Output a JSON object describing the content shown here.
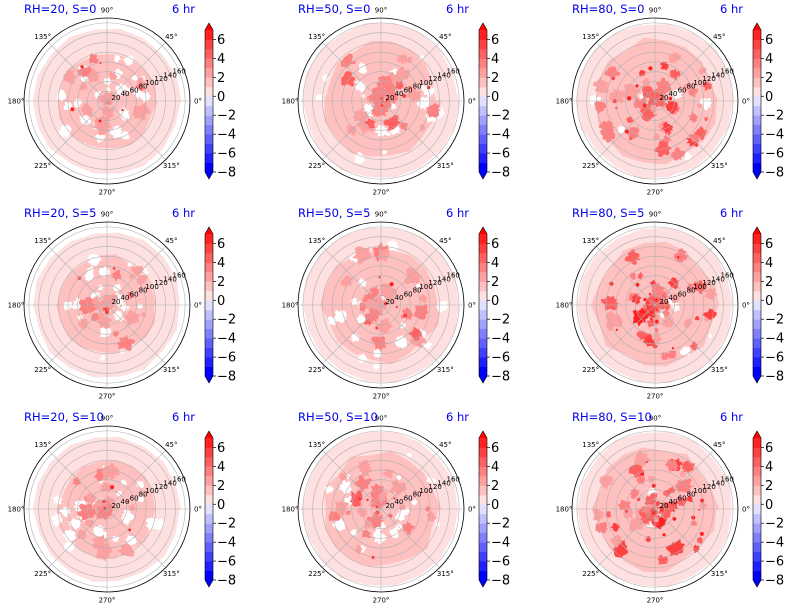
{
  "chart_data": {
    "type": "polar_filled_contour",
    "layout": "3x3",
    "angular_ticks": [
      "0°",
      "45°",
      "90°",
      "135°",
      "180°",
      "225°",
      "270°",
      "315°"
    ],
    "radial_ticks": [
      "20",
      "40",
      "60",
      "80",
      "100",
      "120",
      "140",
      "160"
    ],
    "rlim": [
      0,
      170
    ],
    "colorbar": {
      "ticks": [
        "6",
        "4",
        "2",
        "0",
        "−2",
        "−4",
        "−6",
        "−8"
      ],
      "tick_values": [
        6,
        4,
        2,
        0,
        -2,
        -4,
        -6,
        -8
      ],
      "range": [
        -8,
        7
      ],
      "levels": [
        -8,
        -7,
        -6,
        -5,
        -4,
        -3,
        -2,
        -1,
        0,
        1,
        2,
        3,
        4,
        5,
        6,
        7
      ],
      "colors": [
        "#0000ff",
        "#2020ff",
        "#4040ff",
        "#6060ff",
        "#8080ff",
        "#a0a0ff",
        "#c0c0ff",
        "#e0e0ff",
        "#ffe0e0",
        "#ffc0c0",
        "#ffa0a0",
        "#ff8080",
        "#ff6060",
        "#ff4040",
        "#ff2020",
        "#ff0000"
      ],
      "extend": "both"
    },
    "panels": [
      {
        "title": "RH=20, S=0",
        "time": "6 hr",
        "outer_r": 150,
        "mid_r": 100,
        "intensity": 0.35
      },
      {
        "title": "RH=50, S=0",
        "time": "6 hr",
        "outer_r": 160,
        "mid_r": 118,
        "intensity": 0.45
      },
      {
        "title": "RH=80, S=0",
        "time": "6 hr",
        "outer_r": 160,
        "mid_r": 125,
        "intensity": 0.8
      },
      {
        "title": "RH=20, S=5",
        "time": "6 hr",
        "outer_r": 150,
        "mid_r": 100,
        "intensity": 0.35
      },
      {
        "title": "RH=50, S=5",
        "time": "6 hr",
        "outer_r": 160,
        "mid_r": 118,
        "intensity": 0.45
      },
      {
        "title": "RH=80, S=5",
        "time": "6 hr",
        "outer_r": 160,
        "mid_r": 125,
        "intensity": 0.85
      },
      {
        "title": "RH=20, S=10",
        "time": "6 hr",
        "outer_r": 150,
        "mid_r": 100,
        "intensity": 0.35
      },
      {
        "title": "RH=50, S=10",
        "time": "6 hr",
        "outer_r": 160,
        "mid_r": 118,
        "intensity": 0.45
      },
      {
        "title": "RH=80, S=10",
        "time": "6 hr",
        "outer_r": 160,
        "mid_r": 125,
        "intensity": 0.9
      }
    ]
  }
}
